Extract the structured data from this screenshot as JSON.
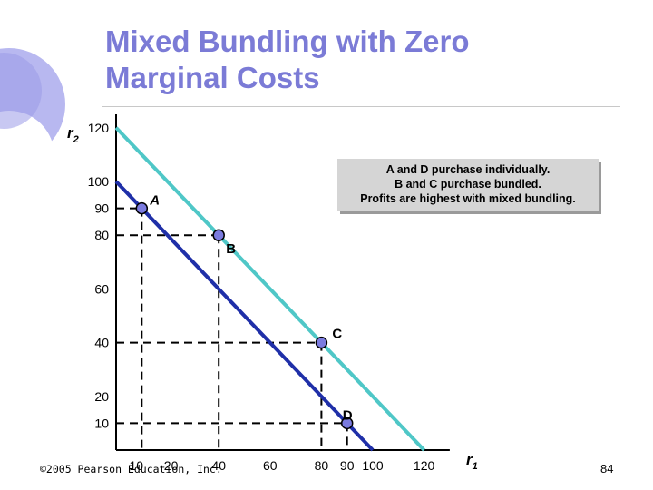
{
  "slide": {
    "title_line1": "Mixed Bundling with Zero",
    "title_line2": "Marginal Costs",
    "copyright": "©2005 Pearson Education, Inc.",
    "page_number": "84"
  },
  "colors": {
    "title": "#7b7bd6",
    "upper_line": "#4fc7c7",
    "lower_line": "#1f2fa8",
    "point_fill": "#7b7bdf",
    "decoration": "#b8b8f0"
  },
  "note": {
    "lines": [
      "A and D purchase individually.",
      "B and C purchase bundled.",
      "Profits are highest with mixed bundling."
    ]
  },
  "chart_data": {
    "type": "line",
    "xlabel": "r1",
    "ylabel": "r2",
    "xlim": [
      0,
      130
    ],
    "ylim": [
      0,
      125
    ],
    "x_ticks": [
      {
        "value": 10,
        "label": "10"
      },
      {
        "value": 20,
        "label": "20"
      },
      {
        "value": 40,
        "label": "40"
      },
      {
        "value": 60,
        "label": "60"
      },
      {
        "value": 80,
        "label": "80"
      },
      {
        "value": 90,
        "label": "90"
      },
      {
        "value": 100,
        "label": "100"
      },
      {
        "value": 120,
        "label": "120"
      }
    ],
    "y_ticks": [
      {
        "value": 10,
        "label": "10"
      },
      {
        "value": 20,
        "label": "20"
      },
      {
        "value": 40,
        "label": "40"
      },
      {
        "value": 60,
        "label": "60"
      },
      {
        "value": 80,
        "label": "80"
      },
      {
        "value": 90,
        "label": "90"
      },
      {
        "value": 100,
        "label": "100"
      },
      {
        "value": 120,
        "label": "120"
      }
    ],
    "lines": [
      {
        "id": "upper",
        "points": [
          [
            0,
            120
          ],
          [
            120,
            0
          ]
        ]
      },
      {
        "id": "lower",
        "points": [
          [
            0,
            100
          ],
          [
            100,
            0
          ]
        ]
      }
    ],
    "points": [
      {
        "label": "A",
        "x": 10,
        "y": 90
      },
      {
        "label": "B",
        "x": 40,
        "y": 80
      },
      {
        "label": "C",
        "x": 80,
        "y": 40
      },
      {
        "label": "D",
        "x": 90,
        "y": 10
      }
    ]
  }
}
